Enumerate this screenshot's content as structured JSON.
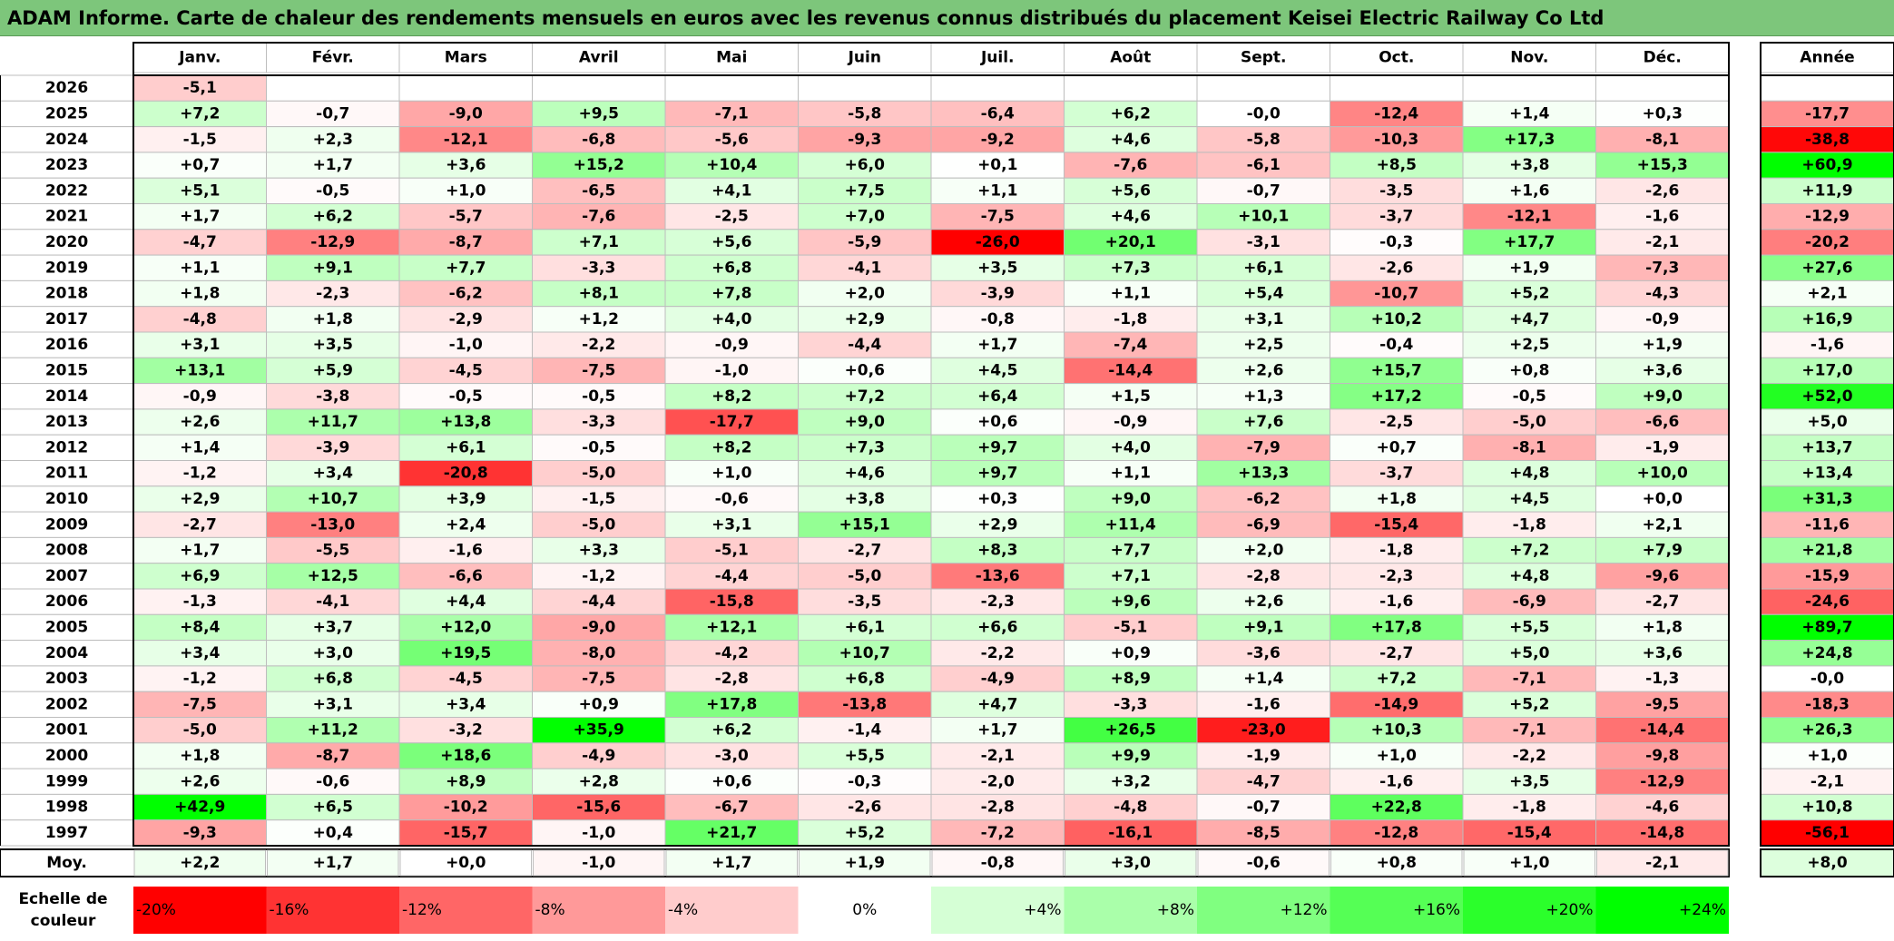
{
  "title": "ADAM Informe. Carte de chaleur des rendements mensuels en euros avec les revenus connus distribués du placement Keisei Electric Railway Co Ltd",
  "chart_data": {
    "type": "heatmap",
    "months": [
      "Janv.",
      "Févr.",
      "Mars",
      "Avril",
      "Mai",
      "Juin",
      "Juil.",
      "Août",
      "Sept.",
      "Oct.",
      "Nov.",
      "Déc."
    ],
    "year_header": "Année",
    "avg_label": "Moy.",
    "scale_label_lines": [
      "Echelle de",
      "couleur"
    ],
    "colors": {
      "negative": "#ff0000",
      "neutral": "#ffffff",
      "positive": "#00ff00"
    },
    "rows": [
      {
        "year": "2026",
        "values": [
          "-5,1",
          "",
          "",
          "",
          "",
          "",
          "",
          "",
          "",
          "",
          "",
          ""
        ],
        "annual": ""
      },
      {
        "year": "2025",
        "values": [
          "+7,2",
          "-0,7",
          "-9,0",
          "+9,5",
          "-7,1",
          "-5,8",
          "-6,4",
          "+6,2",
          "-0,0",
          "-12,4",
          "+1,4",
          "+0,3"
        ],
        "annual": "-17,7"
      },
      {
        "year": "2024",
        "values": [
          "-1,5",
          "+2,3",
          "-12,1",
          "-6,8",
          "-5,6",
          "-9,3",
          "-9,2",
          "+4,6",
          "-5,8",
          "-10,3",
          "+17,3",
          "-8,1"
        ],
        "annual": "-38,8"
      },
      {
        "year": "2023",
        "values": [
          "+0,7",
          "+1,7",
          "+3,6",
          "+15,2",
          "+10,4",
          "+6,0",
          "+0,1",
          "-7,6",
          "-6,1",
          "+8,5",
          "+3,8",
          "+15,3"
        ],
        "annual": "+60,9"
      },
      {
        "year": "2022",
        "values": [
          "+5,1",
          "-0,5",
          "+1,0",
          "-6,5",
          "+4,1",
          "+7,5",
          "+1,1",
          "+5,6",
          "-0,7",
          "-3,5",
          "+1,6",
          "-2,6"
        ],
        "annual": "+11,9"
      },
      {
        "year": "2021",
        "values": [
          "+1,7",
          "+6,2",
          "-5,7",
          "-7,6",
          "-2,5",
          "+7,0",
          "-7,5",
          "+4,6",
          "+10,1",
          "-3,7",
          "-12,1",
          "-1,6"
        ],
        "annual": "-12,9"
      },
      {
        "year": "2020",
        "values": [
          "-4,7",
          "-12,9",
          "-8,7",
          "+7,1",
          "+5,6",
          "-5,9",
          "-26,0",
          "+20,1",
          "-3,1",
          "-0,3",
          "+17,7",
          "-2,1"
        ],
        "annual": "-20,2"
      },
      {
        "year": "2019",
        "values": [
          "+1,1",
          "+9,1",
          "+7,7",
          "-3,3",
          "+6,8",
          "-4,1",
          "+3,5",
          "+7,3",
          "+6,1",
          "-2,6",
          "+1,9",
          "-7,3"
        ],
        "annual": "+27,6"
      },
      {
        "year": "2018",
        "values": [
          "+1,8",
          "-2,3",
          "-6,2",
          "+8,1",
          "+7,8",
          "+2,0",
          "-3,9",
          "+1,1",
          "+5,4",
          "-10,7",
          "+5,2",
          "-4,3"
        ],
        "annual": "+2,1"
      },
      {
        "year": "2017",
        "values": [
          "-4,8",
          "+1,8",
          "-2,9",
          "+1,2",
          "+4,0",
          "+2,9",
          "-0,8",
          "-1,8",
          "+3,1",
          "+10,2",
          "+4,7",
          "-0,9"
        ],
        "annual": "+16,9"
      },
      {
        "year": "2016",
        "values": [
          "+3,1",
          "+3,5",
          "-1,0",
          "-2,2",
          "-0,9",
          "-4,4",
          "+1,7",
          "-7,4",
          "+2,5",
          "-0,4",
          "+2,5",
          "+1,9"
        ],
        "annual": "-1,6"
      },
      {
        "year": "2015",
        "values": [
          "+13,1",
          "+5,9",
          "-4,5",
          "-7,5",
          "-1,0",
          "+0,6",
          "+4,5",
          "-14,4",
          "+2,6",
          "+15,7",
          "+0,8",
          "+3,6"
        ],
        "annual": "+17,0"
      },
      {
        "year": "2014",
        "values": [
          "-0,9",
          "-3,8",
          "-0,5",
          "-0,5",
          "+8,2",
          "+7,2",
          "+6,4",
          "+1,5",
          "+1,3",
          "+17,2",
          "-0,5",
          "+9,0"
        ],
        "annual": "+52,0"
      },
      {
        "year": "2013",
        "values": [
          "+2,6",
          "+11,7",
          "+13,8",
          "-3,3",
          "-17,7",
          "+9,0",
          "+0,6",
          "-0,9",
          "+7,6",
          "-2,5",
          "-5,0",
          "-6,6"
        ],
        "annual": "+5,0"
      },
      {
        "year": "2012",
        "values": [
          "+1,4",
          "-3,9",
          "+6,1",
          "-0,5",
          "+8,2",
          "+7,3",
          "+9,7",
          "+4,0",
          "-7,9",
          "+0,7",
          "-8,1",
          "-1,9"
        ],
        "annual": "+13,7"
      },
      {
        "year": "2011",
        "values": [
          "-1,2",
          "+3,4",
          "-20,8",
          "-5,0",
          "+1,0",
          "+4,6",
          "+9,7",
          "+1,1",
          "+13,3",
          "-3,7",
          "+4,8",
          "+10,0"
        ],
        "annual": "+13,4"
      },
      {
        "year": "2010",
        "values": [
          "+2,9",
          "+10,7",
          "+3,9",
          "-1,5",
          "-0,6",
          "+3,8",
          "+0,3",
          "+9,0",
          "-6,2",
          "+1,8",
          "+4,5",
          "+0,0"
        ],
        "annual": "+31,3"
      },
      {
        "year": "2009",
        "values": [
          "-2,7",
          "-13,0",
          "+2,4",
          "-5,0",
          "+3,1",
          "+15,1",
          "+2,9",
          "+11,4",
          "-6,9",
          "-15,4",
          "-1,8",
          "+2,1"
        ],
        "annual": "-11,6"
      },
      {
        "year": "2008",
        "values": [
          "+1,7",
          "-5,5",
          "-1,6",
          "+3,3",
          "-5,1",
          "-2,7",
          "+8,3",
          "+7,7",
          "+2,0",
          "-1,8",
          "+7,2",
          "+7,9"
        ],
        "annual": "+21,8"
      },
      {
        "year": "2007",
        "values": [
          "+6,9",
          "+12,5",
          "-6,6",
          "-1,2",
          "-4,4",
          "-5,0",
          "-13,6",
          "+7,1",
          "-2,8",
          "-2,3",
          "+4,8",
          "-9,6"
        ],
        "annual": "-15,9"
      },
      {
        "year": "2006",
        "values": [
          "-1,3",
          "-4,1",
          "+4,4",
          "-4,4",
          "-15,8",
          "-3,5",
          "-2,3",
          "+9,6",
          "+2,6",
          "-1,6",
          "-6,9",
          "-2,7"
        ],
        "annual": "-24,6"
      },
      {
        "year": "2005",
        "values": [
          "+8,4",
          "+3,7",
          "+12,0",
          "-9,0",
          "+12,1",
          "+6,1",
          "+6,6",
          "-5,1",
          "+9,1",
          "+17,8",
          "+5,5",
          "+1,8"
        ],
        "annual": "+89,7"
      },
      {
        "year": "2004",
        "values": [
          "+3,4",
          "+3,0",
          "+19,5",
          "-8,0",
          "-4,2",
          "+10,7",
          "-2,2",
          "+0,9",
          "-3,6",
          "-2,7",
          "+5,0",
          "+3,6"
        ],
        "annual": "+24,8"
      },
      {
        "year": "2003",
        "values": [
          "-1,2",
          "+6,8",
          "-4,5",
          "-7,5",
          "-2,8",
          "+6,8",
          "-4,9",
          "+8,9",
          "+1,4",
          "+7,2",
          "-7,1",
          "-1,3"
        ],
        "annual": "-0,0"
      },
      {
        "year": "2002",
        "values": [
          "-7,5",
          "+3,1",
          "+3,4",
          "+0,9",
          "+17,8",
          "-13,8",
          "+4,7",
          "-3,3",
          "-1,6",
          "-14,9",
          "+5,2",
          "-9,5"
        ],
        "annual": "-18,3"
      },
      {
        "year": "2001",
        "values": [
          "-5,0",
          "+11,2",
          "-3,2",
          "+35,9",
          "+6,2",
          "-1,4",
          "+1,7",
          "+26,5",
          "-23,0",
          "+10,3",
          "-7,1",
          "-14,4"
        ],
        "annual": "+26,3"
      },
      {
        "year": "2000",
        "values": [
          "+1,8",
          "-8,7",
          "+18,6",
          "-4,9",
          "-3,0",
          "+5,5",
          "-2,1",
          "+9,9",
          "-1,9",
          "+1,0",
          "-2,2",
          "-9,8"
        ],
        "annual": "+1,0"
      },
      {
        "year": "1999",
        "values": [
          "+2,6",
          "-0,6",
          "+8,9",
          "+2,8",
          "+0,6",
          "-0,3",
          "-2,0",
          "+3,2",
          "-4,7",
          "-1,6",
          "+3,5",
          "-12,9"
        ],
        "annual": "-2,1"
      },
      {
        "year": "1998",
        "values": [
          "+42,9",
          "+6,5",
          "-10,2",
          "-15,6",
          "-6,7",
          "-2,6",
          "-2,8",
          "-4,8",
          "-0,7",
          "+22,8",
          "-1,8",
          "-4,6"
        ],
        "annual": "+10,8"
      },
      {
        "year": "1997",
        "values": [
          "-9,3",
          "+0,4",
          "-15,7",
          "-1,0",
          "+21,7",
          "+5,2",
          "-7,2",
          "-16,1",
          "-8,5",
          "-12,8",
          "-15,4",
          "-14,8"
        ],
        "annual": "-56,1"
      }
    ],
    "averages": [
      "+2,2",
      "+1,7",
      "+0,0",
      "-1,0",
      "+1,7",
      "+1,9",
      "-0,8",
      "+3,0",
      "-0,6",
      "+0,8",
      "+1,0",
      "-2,1"
    ],
    "average_annual": "+8,0",
    "scale": [
      {
        "label": "-20%",
        "value": -20
      },
      {
        "label": "-16%",
        "value": -16
      },
      {
        "label": "-12%",
        "value": -12
      },
      {
        "label": "-8%",
        "value": -8
      },
      {
        "label": "-4%",
        "value": -4
      },
      {
        "label": "0%",
        "value": 0
      },
      {
        "label": "+4%",
        "value": 4
      },
      {
        "label": "+8%",
        "value": 8
      },
      {
        "label": "+12%",
        "value": 12
      },
      {
        "label": "+16%",
        "value": 16
      },
      {
        "label": "+20%",
        "value": 20
      },
      {
        "label": "+24%",
        "value": 24
      }
    ]
  }
}
